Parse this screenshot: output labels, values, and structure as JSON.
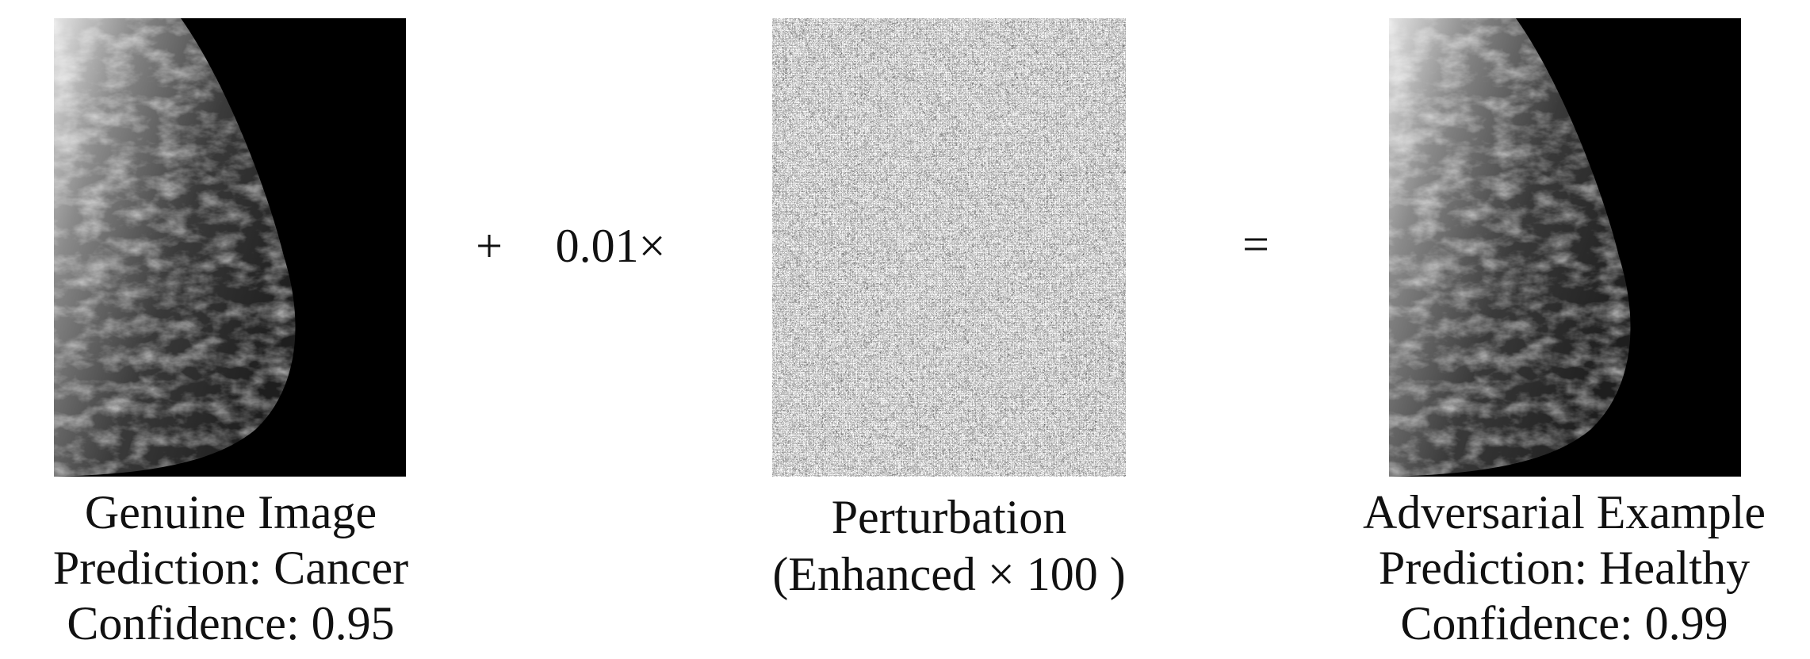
{
  "panels": [
    {
      "caption": [
        "Genuine Image",
        "Prediction: Cancer",
        "Confidence: 0.95"
      ]
    },
    {
      "caption": [
        "Perturbation",
        "(Enhanced × 100 )"
      ]
    },
    {
      "caption": [
        "Adversarial Example",
        "Prediction: Healthy",
        "Confidence: 0.99"
      ]
    }
  ],
  "operators": {
    "plus": "+",
    "scale": "0.01×",
    "equals": "="
  }
}
